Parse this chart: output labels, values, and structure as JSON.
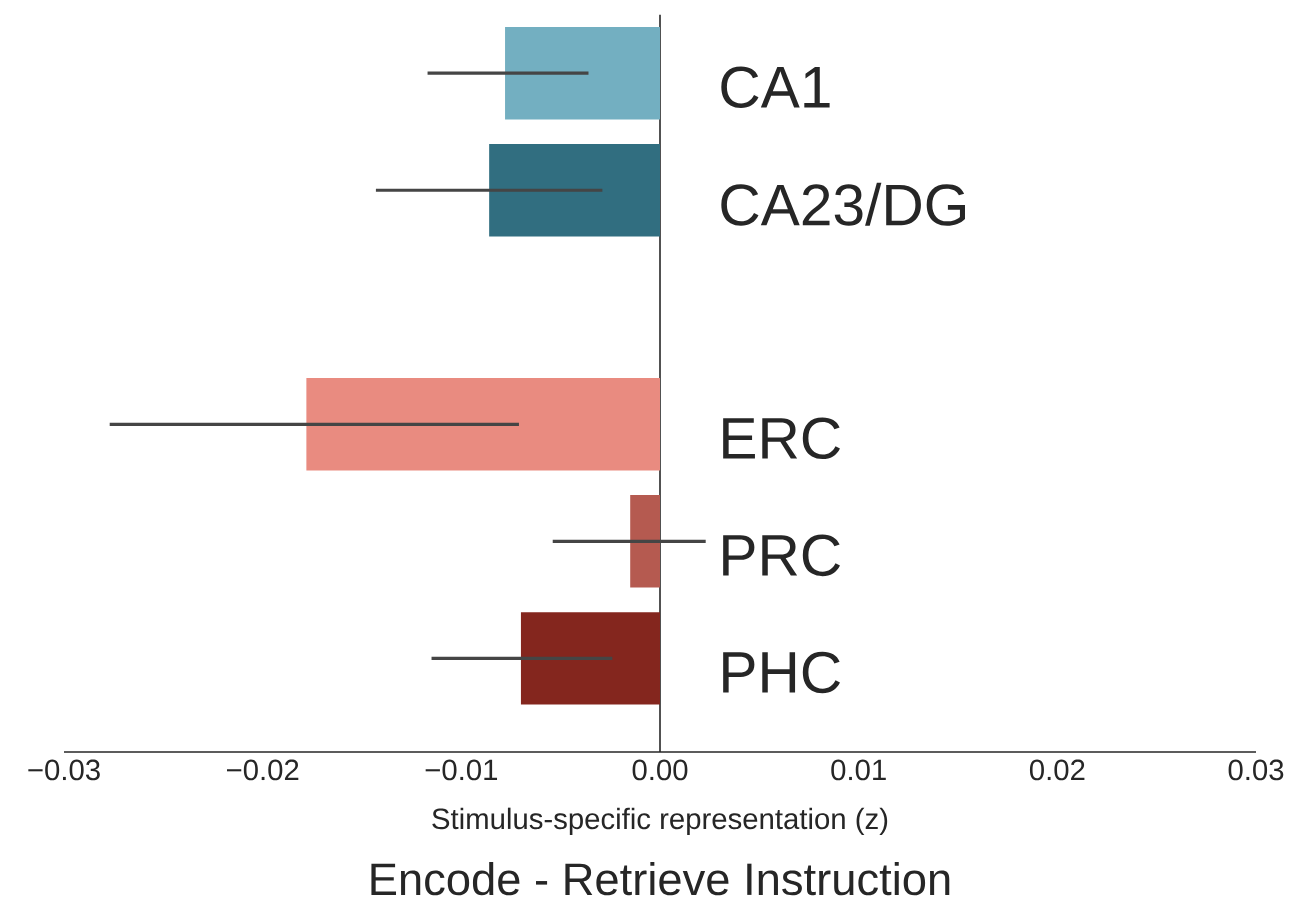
{
  "chart_data": {
    "type": "bar",
    "orientation": "horizontal",
    "title": "Encode - Retrieve Instruction",
    "xlabel": "Stimulus-specific representation (z)",
    "categories": [
      "CA1",
      "CA23/DG",
      null,
      "ERC",
      "PRC",
      "PHC"
    ],
    "values": [
      -0.0078,
      -0.0086,
      null,
      -0.0178,
      -0.0015,
      -0.007
    ],
    "colors": [
      "#73afc1",
      "#316e80",
      "#ffffff",
      "#e98b80",
      "#b55a50",
      "#84261e"
    ],
    "errors": [
      [
        -0.0117,
        -0.0036
      ],
      [
        -0.0143,
        -0.0029
      ],
      null,
      [
        -0.0277,
        -0.0071
      ],
      [
        -0.0054,
        0.0023
      ],
      [
        -0.0115,
        -0.0024
      ]
    ],
    "xlim": [
      -0.03,
      0.03
    ],
    "xticks": [
      {
        "value": -0.03,
        "label": "−0.03"
      },
      {
        "value": -0.02,
        "label": "−0.02"
      },
      {
        "value": -0.01,
        "label": "−0.01"
      },
      {
        "value": 0,
        "label": "0.00"
      },
      {
        "value": 0.01,
        "label": "0.01"
      },
      {
        "value": 0.02,
        "label": "0.02"
      },
      {
        "value": 0.03,
        "label": "0.03"
      }
    ]
  }
}
